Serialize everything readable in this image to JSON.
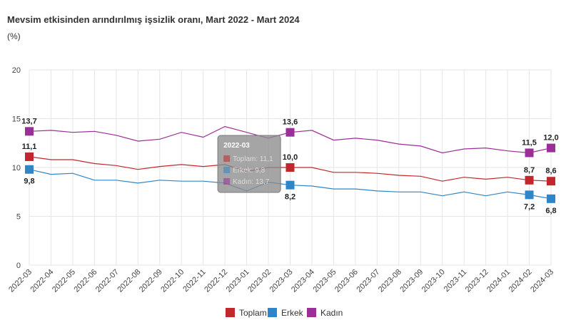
{
  "chart_data": {
    "type": "line",
    "title": "Mevsim etkisinden arındırılmış işsizlik oranı, Mart 2022 - Mart 2024",
    "unit": "(%)",
    "ylim": [
      0,
      20
    ],
    "yticks": [
      0,
      5,
      10,
      15,
      20
    ],
    "grid": true,
    "legend_position": "bottom-center",
    "categories": [
      "2022-03",
      "2022-04",
      "2022-05",
      "2022-06",
      "2022-07",
      "2022-08",
      "2022-09",
      "2022-10",
      "2022-11",
      "2022-12",
      "2023-01",
      "2023-02",
      "2023-03",
      "2023-04",
      "2023-05",
      "2023-06",
      "2023-07",
      "2023-08",
      "2023-09",
      "2023-10",
      "2023-11",
      "2023-12",
      "2024-01",
      "2024-02",
      "2024-03"
    ],
    "series": [
      {
        "name": "Toplam",
        "color": "#c0282d",
        "values": [
          11.1,
          10.8,
          10.8,
          10.4,
          10.2,
          9.8,
          10.1,
          10.3,
          10.1,
          10.3,
          9.6,
          10.0,
          10.0,
          10.0,
          9.5,
          9.5,
          9.4,
          9.2,
          9.1,
          8.6,
          9.0,
          8.8,
          9.0,
          8.7,
          8.6
        ],
        "markers": [
          0,
          12,
          23,
          24
        ]
      },
      {
        "name": "Erkek",
        "color": "#2e86c8",
        "values": [
          9.8,
          9.3,
          9.4,
          8.7,
          8.7,
          8.4,
          8.7,
          8.6,
          8.6,
          8.4,
          7.6,
          8.5,
          8.2,
          8.1,
          7.8,
          7.8,
          7.6,
          7.5,
          7.5,
          7.1,
          7.5,
          7.1,
          7.5,
          7.2,
          6.8
        ],
        "markers": [
          0,
          12,
          23,
          24
        ]
      },
      {
        "name": "Kadın",
        "color": "#9b2f97",
        "values": [
          13.7,
          13.8,
          13.6,
          13.7,
          13.3,
          12.7,
          12.9,
          13.6,
          13.1,
          14.2,
          13.6,
          13.0,
          13.6,
          13.8,
          12.8,
          13.0,
          12.8,
          12.4,
          12.2,
          11.5,
          11.9,
          12.0,
          11.7,
          11.5,
          12.0
        ],
        "markers": [
          0,
          12,
          23,
          24
        ]
      }
    ],
    "data_labels": [
      {
        "series": 2,
        "index": 0,
        "text": "13,7",
        "pos": "above"
      },
      {
        "series": 0,
        "index": 0,
        "text": "11,1",
        "pos": "above"
      },
      {
        "series": 1,
        "index": 0,
        "text": "9,8",
        "pos": "below"
      },
      {
        "series": 2,
        "index": 12,
        "text": "13,6",
        "pos": "above"
      },
      {
        "series": 0,
        "index": 12,
        "text": "10,0",
        "pos": "above"
      },
      {
        "series": 1,
        "index": 12,
        "text": "8,2",
        "pos": "below"
      },
      {
        "series": 2,
        "index": 23,
        "text": "11,5",
        "pos": "above"
      },
      {
        "series": 0,
        "index": 23,
        "text": "8,7",
        "pos": "above"
      },
      {
        "series": 1,
        "index": 23,
        "text": "7,2",
        "pos": "below"
      },
      {
        "series": 2,
        "index": 24,
        "text": "12,0",
        "pos": "above"
      },
      {
        "series": 0,
        "index": 24,
        "text": "8,6",
        "pos": "above"
      },
      {
        "series": 1,
        "index": 24,
        "text": "6,8",
        "pos": "below"
      }
    ],
    "tooltip": {
      "index": 9,
      "title": "2022-03",
      "lines": [
        "Toplam: 11,1",
        "Erkek: 9,8",
        "Kadın: 13,7"
      ]
    }
  }
}
